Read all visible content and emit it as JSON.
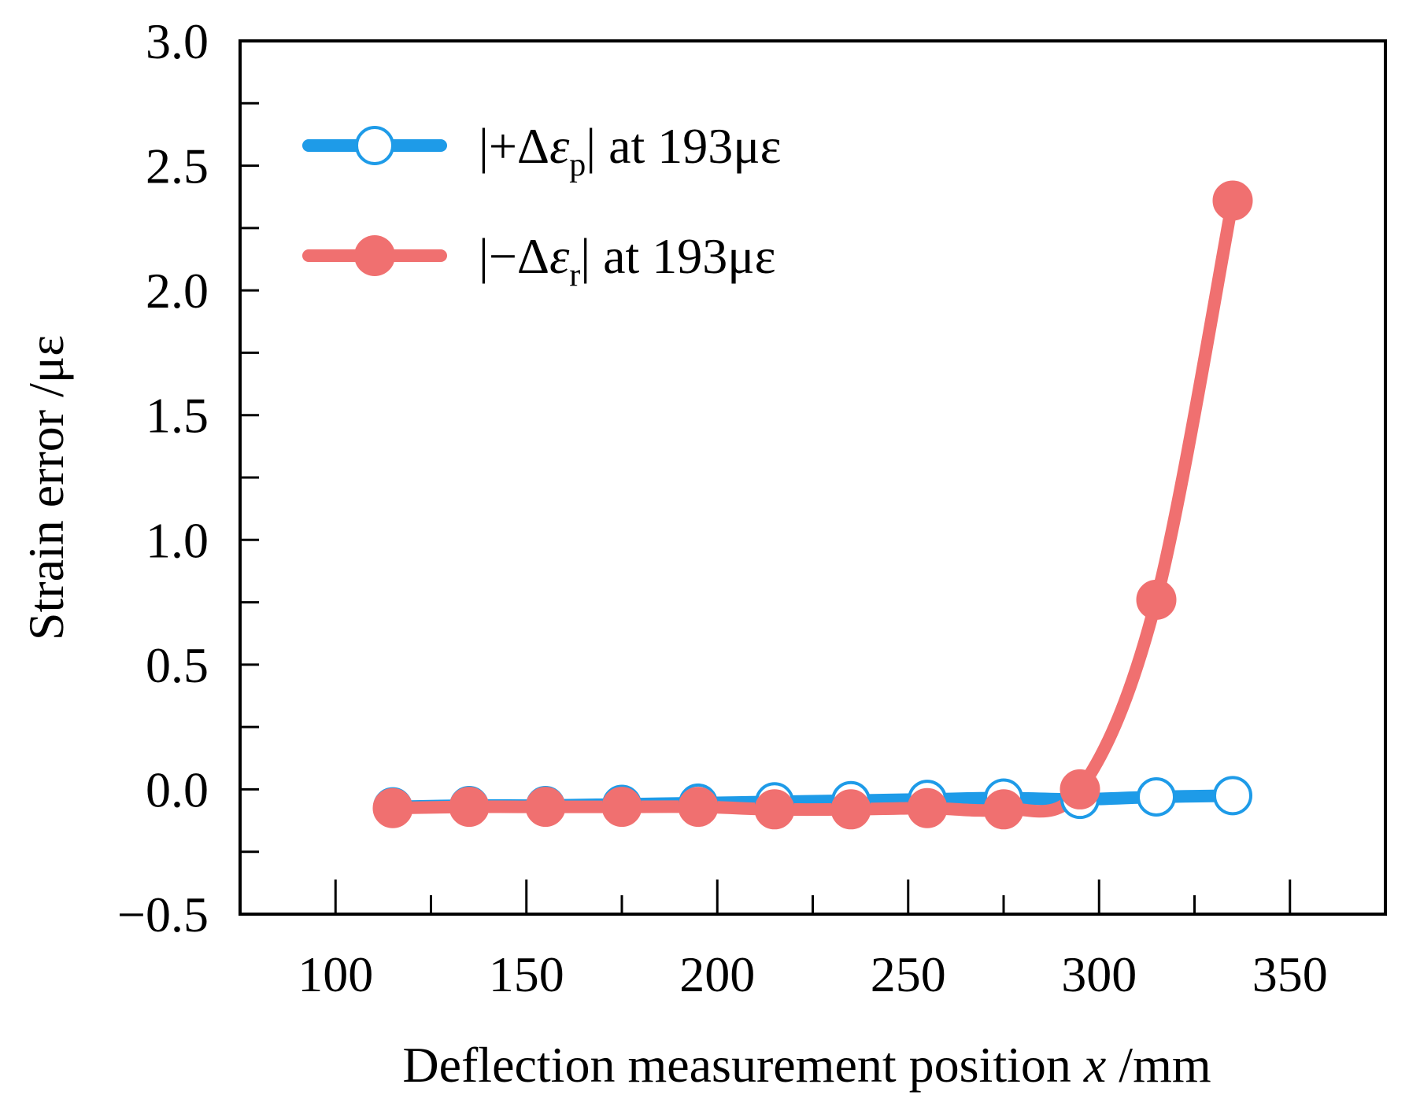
{
  "chart_data": {
    "type": "line",
    "xlabel": "Deflection measurement position x /mm",
    "xlabel_main": "Deflection measurement position ",
    "xlabel_var": "x",
    "xlabel_unit": " /mm",
    "ylabel": "Strain error /με",
    "xlim": [
      75,
      375
    ],
    "ylim": [
      -0.5,
      3.0
    ],
    "x_ticks": [
      100,
      150,
      200,
      250,
      300,
      350
    ],
    "x_tick_labels": [
      "100",
      "150",
      "200",
      "250",
      "300",
      "350"
    ],
    "y_ticks": [
      -0.5,
      0.0,
      0.5,
      1.0,
      1.5,
      2.0,
      2.5,
      3.0
    ],
    "y_tick_labels": [
      "−0.5",
      "0.0",
      "0.5",
      "1.0",
      "1.5",
      "2.0",
      "2.5",
      "3.0"
    ],
    "legend_position": "top-left",
    "series": [
      {
        "name": "|+Δεp| at 193με",
        "legend_prefix": "|+Δ",
        "legend_symbol": "ε",
        "legend_sub": "p",
        "legend_suffix": "| at 193με",
        "color": "#1E9BE8",
        "marker": "open-circle",
        "x": [
          115,
          135,
          155,
          175,
          195,
          215,
          235,
          255,
          275,
          295,
          315,
          335
        ],
        "values": [
          -0.07,
          -0.065,
          -0.065,
          -0.06,
          -0.055,
          -0.05,
          -0.045,
          -0.04,
          -0.035,
          -0.04,
          -0.03,
          -0.025
        ]
      },
      {
        "name": "|−Δεr| at 193με",
        "legend_prefix": "|−Δ",
        "legend_symbol": "ε",
        "legend_sub": "r",
        "legend_suffix": "| at 193με",
        "color": "#F07070",
        "marker": "filled-circle",
        "x": [
          115,
          135,
          155,
          175,
          195,
          215,
          235,
          255,
          275,
          295,
          315,
          335
        ],
        "values": [
          -0.075,
          -0.07,
          -0.07,
          -0.07,
          -0.07,
          -0.08,
          -0.08,
          -0.075,
          -0.08,
          0.0,
          0.76,
          2.36
        ]
      }
    ]
  }
}
